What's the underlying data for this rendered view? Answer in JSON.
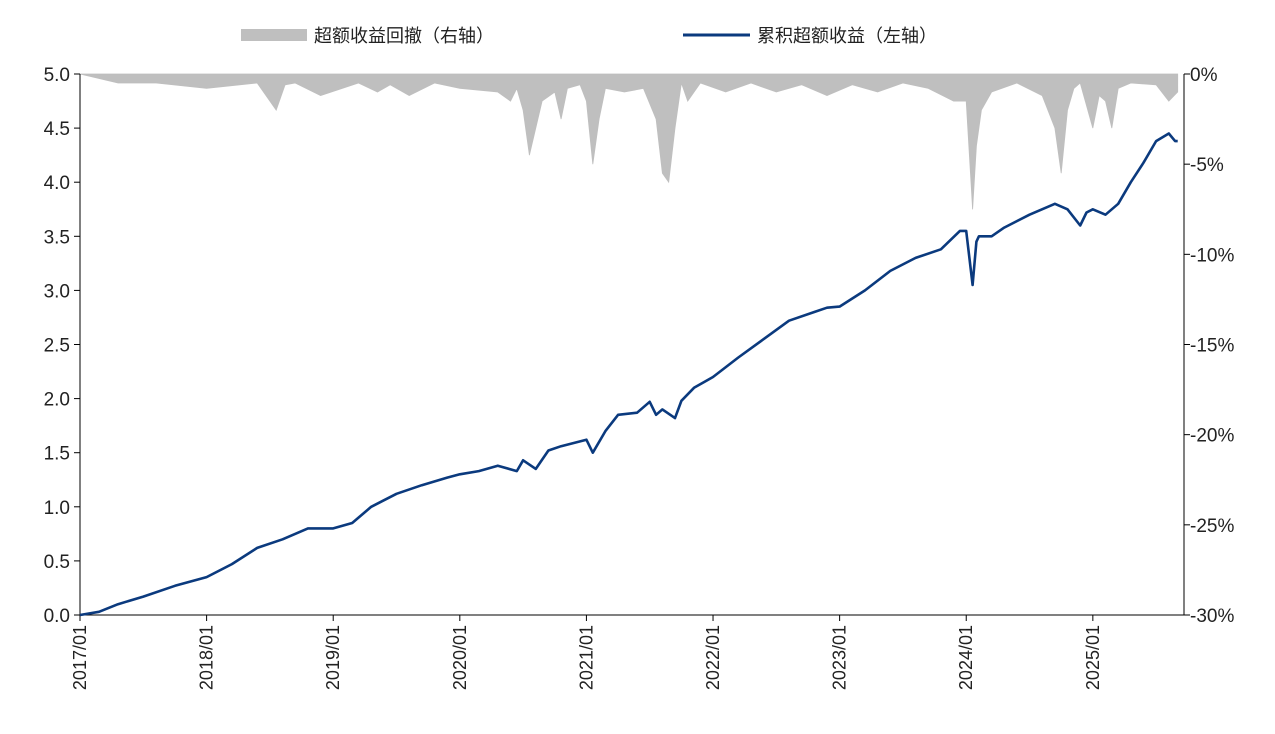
{
  "colors": {
    "excess_line": "#0b3a7e",
    "drawdown_area": "#bfbfbf",
    "axis": "#000000"
  },
  "chart_data": {
    "type": "line",
    "legend": {
      "placement": "top-center",
      "drawdown_label": "超额收益回撤（右轴）",
      "excess_label": "累积超额收益（左轴）"
    },
    "x_ticks": [
      "2017/01",
      "2018/01",
      "2019/01",
      "2020/01",
      "2021/01",
      "2022/01",
      "2023/01",
      "2024/01",
      "2025/01"
    ],
    "left_axis": {
      "ylim": [
        0,
        5.0
      ],
      "ticks": [
        "0.0",
        "0.5",
        "1.0",
        "1.5",
        "2.0",
        "2.5",
        "3.0",
        "3.5",
        "4.0",
        "4.5",
        "5.0"
      ]
    },
    "right_axis": {
      "ylim": [
        -30,
        0
      ],
      "ticks": [
        "-30%",
        "-25%",
        "-20%",
        "-15%",
        "-10%",
        "-5%",
        "0%"
      ]
    },
    "grid": false,
    "series": [
      {
        "name": "累积超额收益（左轴）",
        "axis": "left",
        "kind": "line",
        "x": [
          2017.0,
          2017.15,
          2017.3,
          2017.5,
          2017.75,
          2018.0,
          2018.2,
          2018.4,
          2018.6,
          2018.8,
          2019.0,
          2019.15,
          2019.3,
          2019.5,
          2019.7,
          2019.9,
          2020.0,
          2020.15,
          2020.3,
          2020.45,
          2020.5,
          2020.6,
          2020.7,
          2020.8,
          2021.0,
          2021.05,
          2021.15,
          2021.25,
          2021.4,
          2021.5,
          2021.55,
          2021.6,
          2021.7,
          2021.75,
          2021.85,
          2022.0,
          2022.2,
          2022.4,
          2022.6,
          2022.8,
          2022.9,
          2023.0,
          2023.2,
          2023.4,
          2023.6,
          2023.8,
          2023.95,
          2024.0,
          2024.05,
          2024.08,
          2024.1,
          2024.2,
          2024.3,
          2024.5,
          2024.7,
          2024.8,
          2024.9,
          2024.95,
          2025.0,
          2025.1,
          2025.2,
          2025.3,
          2025.4,
          2025.5,
          2025.6,
          2025.65,
          2025.67
        ],
        "values": [
          0.0,
          0.03,
          0.1,
          0.17,
          0.27,
          0.35,
          0.47,
          0.62,
          0.7,
          0.8,
          0.8,
          0.85,
          1.0,
          1.12,
          1.2,
          1.27,
          1.3,
          1.33,
          1.38,
          1.33,
          1.43,
          1.35,
          1.52,
          1.56,
          1.62,
          1.5,
          1.7,
          1.85,
          1.87,
          1.97,
          1.85,
          1.9,
          1.82,
          1.98,
          2.1,
          2.2,
          2.38,
          2.55,
          2.72,
          2.8,
          2.84,
          2.85,
          3.0,
          3.18,
          3.3,
          3.38,
          3.55,
          3.55,
          3.05,
          3.45,
          3.5,
          3.5,
          3.58,
          3.7,
          3.8,
          3.75,
          3.6,
          3.72,
          3.75,
          3.7,
          3.8,
          4.0,
          4.18,
          4.38,
          4.45,
          4.38,
          4.38
        ]
      },
      {
        "name": "超额收益回撤（右轴）",
        "axis": "right",
        "kind": "area",
        "x": [
          2017.0,
          2017.3,
          2017.6,
          2018.0,
          2018.4,
          2018.55,
          2018.62,
          2018.7,
          2018.9,
          2019.2,
          2019.35,
          2019.45,
          2019.6,
          2019.8,
          2020.0,
          2020.3,
          2020.4,
          2020.45,
          2020.5,
          2020.55,
          2020.65,
          2020.75,
          2020.8,
          2020.85,
          2020.95,
          2021.0,
          2021.05,
          2021.1,
          2021.15,
          2021.3,
          2021.45,
          2021.55,
          2021.6,
          2021.65,
          2021.7,
          2021.75,
          2021.8,
          2021.9,
          2022.1,
          2022.3,
          2022.5,
          2022.7,
          2022.9,
          2023.1,
          2023.3,
          2023.5,
          2023.7,
          2023.9,
          2024.0,
          2024.05,
          2024.08,
          2024.12,
          2024.2,
          2024.4,
          2024.6,
          2024.7,
          2024.75,
          2024.8,
          2024.85,
          2024.9,
          2025.0,
          2025.05,
          2025.1,
          2025.15,
          2025.2,
          2025.3,
          2025.5,
          2025.6,
          2025.67
        ],
        "values": [
          0,
          -0.5,
          -0.5,
          -0.8,
          -0.5,
          -2.0,
          -0.6,
          -0.5,
          -1.2,
          -0.5,
          -1.0,
          -0.6,
          -1.2,
          -0.5,
          -0.8,
          -1.0,
          -1.5,
          -0.8,
          -2.0,
          -4.5,
          -1.5,
          -1.0,
          -2.5,
          -0.8,
          -0.6,
          -1.5,
          -5.0,
          -2.5,
          -0.8,
          -1.0,
          -0.8,
          -2.5,
          -5.5,
          -6.0,
          -3.0,
          -0.5,
          -1.5,
          -0.5,
          -1.0,
          -0.5,
          -1.0,
          -0.6,
          -1.2,
          -0.6,
          -1.0,
          -0.5,
          -0.8,
          -1.5,
          -1.5,
          -7.5,
          -4.0,
          -2.0,
          -1.0,
          -0.5,
          -1.2,
          -3.0,
          -5.5,
          -2.0,
          -0.8,
          -0.5,
          -3.0,
          -1.2,
          -1.5,
          -3.0,
          -0.8,
          -0.5,
          -0.6,
          -1.5,
          -1.0
        ]
      }
    ]
  }
}
